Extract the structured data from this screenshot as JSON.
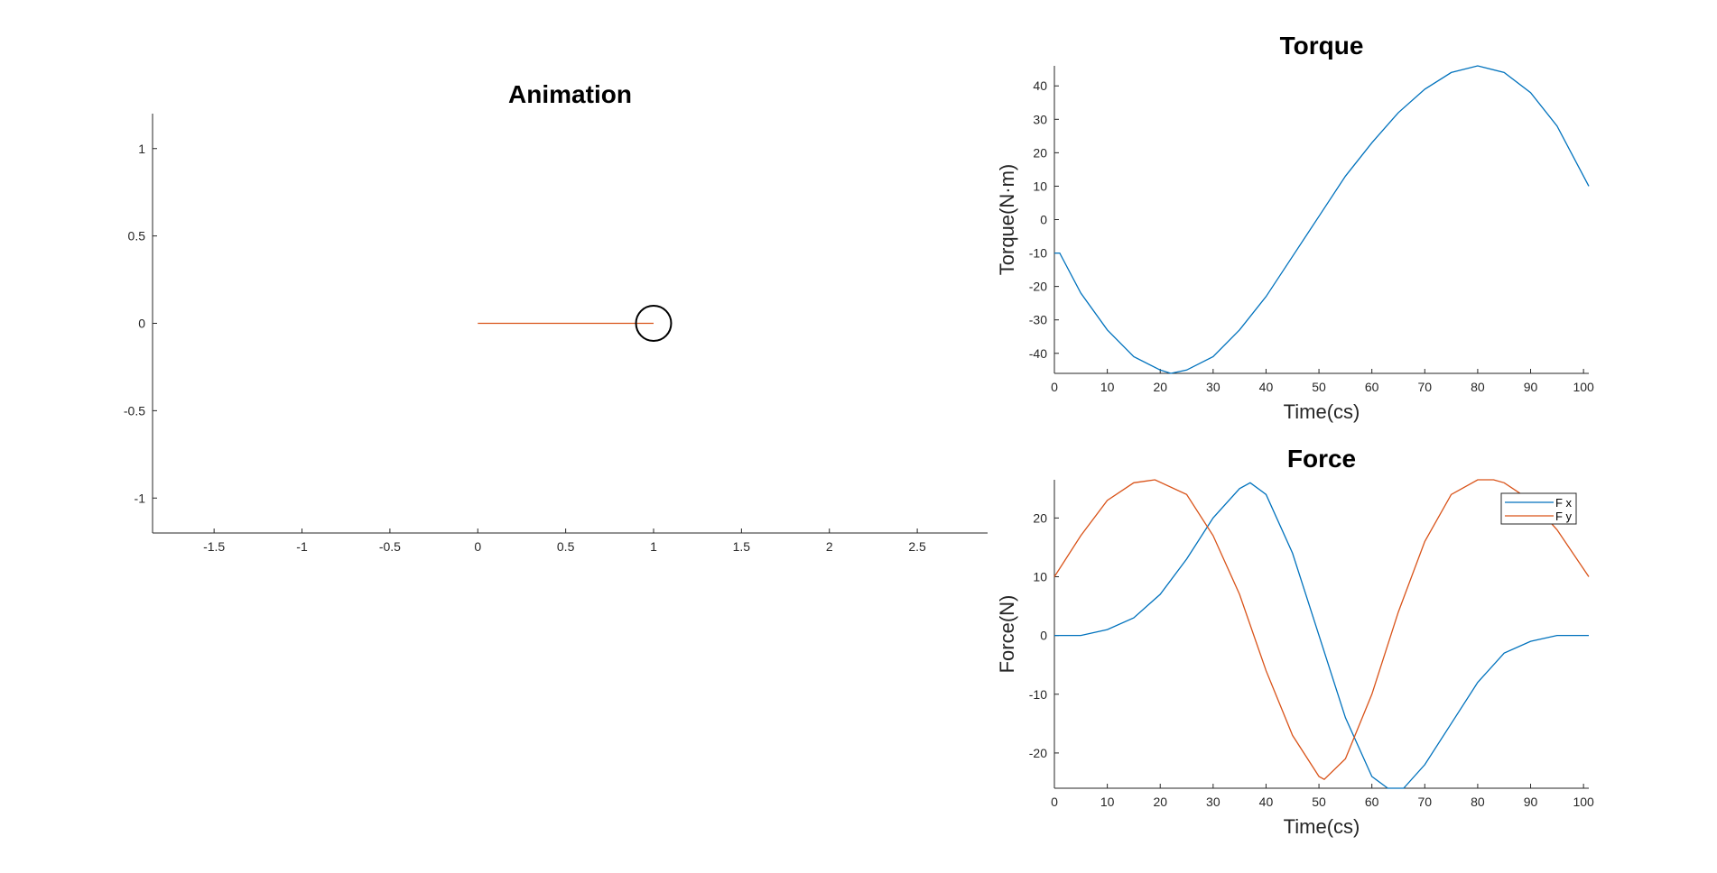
{
  "colors": {
    "blue": "#0072BD",
    "orange": "#D95319",
    "axis": "#262626",
    "circle": "#000000"
  },
  "chart_data": [
    {
      "id": "animation",
      "type": "line",
      "title": "Animation",
      "xlabel": "",
      "ylabel": "",
      "xlim": [
        -1.85,
        2.9
      ],
      "ylim": [
        -1.2,
        1.2
      ],
      "xticks": [
        -1.5,
        -1,
        -0.5,
        0,
        0.5,
        1,
        1.5,
        2,
        2.5
      ],
      "xticklabels": [
        "-1.5",
        "-1",
        "-0.5",
        "0",
        "0.5",
        "1",
        "1.5",
        "2",
        "2.5"
      ],
      "yticks": [
        -1,
        -0.5,
        0,
        0.5,
        1
      ],
      "yticklabels": [
        "-1",
        "-0.5",
        "0",
        "0.5",
        "1"
      ],
      "rod": {
        "x": [
          0,
          1
        ],
        "y": [
          0,
          0
        ],
        "color": "#D95319"
      },
      "bob": {
        "center": [
          1,
          0
        ],
        "radius": 0.1
      },
      "grid": false,
      "legend": null
    },
    {
      "id": "torque",
      "type": "line",
      "title": "Torque",
      "xlabel": "Time(cs)",
      "ylabel": "Torque(N·m)",
      "xlim": [
        0,
        101
      ],
      "ylim": [
        -46,
        46
      ],
      "xticks": [
        0,
        10,
        20,
        30,
        40,
        50,
        60,
        70,
        80,
        90,
        100
      ],
      "xticklabels": [
        "0",
        "10",
        "20",
        "30",
        "40",
        "50",
        "60",
        "70",
        "80",
        "90",
        "100"
      ],
      "yticks": [
        -40,
        -30,
        -20,
        -10,
        0,
        10,
        20,
        30,
        40
      ],
      "yticklabels": [
        "-40",
        "-30",
        "-20",
        "-10",
        "0",
        "10",
        "20",
        "30",
        "40"
      ],
      "grid": false,
      "legend": null,
      "series": [
        {
          "color": "#0072BD",
          "x": [
            0,
            1,
            5,
            10,
            15,
            20,
            22,
            25,
            30,
            35,
            40,
            45,
            50,
            55,
            60,
            65,
            70,
            75,
            80,
            85,
            90,
            95,
            101
          ],
          "values": [
            -10,
            -10,
            -22,
            -33,
            -41,
            -45,
            -46,
            -45,
            -41,
            -33,
            -23,
            -11,
            1,
            13,
            23,
            32,
            39,
            44,
            46,
            44,
            38,
            28,
            10
          ]
        }
      ]
    },
    {
      "id": "force",
      "type": "line",
      "title": "Force",
      "xlabel": "Time(cs)",
      "ylabel": "Force(N)",
      "xlim": [
        0,
        101
      ],
      "ylim": [
        -26,
        26.5
      ],
      "xticks": [
        0,
        10,
        20,
        30,
        40,
        50,
        60,
        70,
        80,
        90,
        100
      ],
      "xticklabels": [
        "0",
        "10",
        "20",
        "30",
        "40",
        "50",
        "60",
        "70",
        "80",
        "90",
        "100"
      ],
      "yticks": [
        -20,
        -10,
        0,
        10,
        20
      ],
      "yticklabels": [
        "-20",
        "-10",
        "0",
        "10",
        "20"
      ],
      "grid": false,
      "legend": "top-right",
      "series": [
        {
          "name": "F x",
          "color": "#0072BD",
          "x": [
            0,
            5,
            10,
            15,
            20,
            25,
            30,
            35,
            37,
            40,
            45,
            50,
            55,
            60,
            63,
            66,
            70,
            75,
            80,
            85,
            90,
            95,
            100,
            101
          ],
          "values": [
            0,
            0,
            1,
            3,
            7,
            13,
            20,
            25,
            26,
            24,
            14,
            0,
            -14,
            -24,
            -26,
            -26,
            -22,
            -15,
            -8,
            -3,
            -1,
            0,
            0,
            0
          ]
        },
        {
          "name": "F y",
          "color": "#D95319",
          "x": [
            0,
            5,
            10,
            15,
            19,
            25,
            30,
            35,
            40,
            45,
            50,
            51,
            55,
            60,
            65,
            70,
            75,
            80,
            83,
            85,
            90,
            95,
            101
          ],
          "values": [
            10,
            17,
            23,
            26,
            26.5,
            24,
            17,
            7,
            -6,
            -17,
            -24,
            -24.5,
            -21,
            -10,
            4,
            16,
            24,
            26.5,
            26.5,
            26,
            23,
            18,
            10
          ]
        }
      ]
    }
  ]
}
